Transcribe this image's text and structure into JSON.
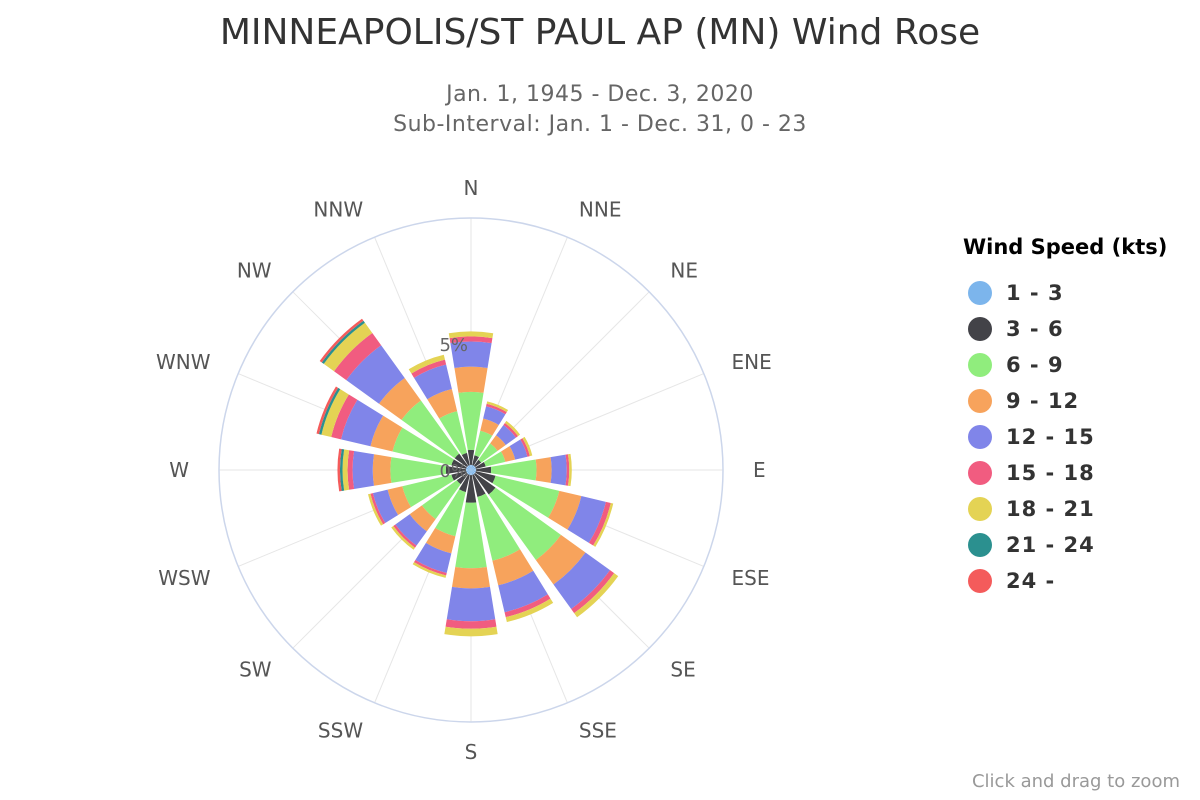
{
  "header": {
    "title": "MINNEAPOLIS/ST PAUL AP (MN) Wind Rose",
    "subtitle_line1": "Jan. 1, 1945 - Dec. 3, 2020",
    "subtitle_line2": "Sub-Interval: Jan. 1 - Dec. 31, 0 - 23"
  },
  "footer": {
    "zoom_hint": "Click and drag to zoom"
  },
  "legend": {
    "title": "Wind Speed (kts)",
    "items": [
      {
        "label": "1 - 3",
        "color": "#7cb5ec"
      },
      {
        "label": "3 - 6",
        "color": "#434348"
      },
      {
        "label": "6 - 9",
        "color": "#90ed7d"
      },
      {
        "label": "9 - 12",
        "color": "#f7a35c"
      },
      {
        "label": "12 - 15",
        "color": "#8085e9"
      },
      {
        "label": "15 - 18",
        "color": "#f15c80"
      },
      {
        "label": "18 - 21",
        "color": "#e4d354"
      },
      {
        "label": "21 - 24",
        "color": "#2b908f"
      },
      {
        "label": "24 -",
        "color": "#f45b5b"
      }
    ]
  },
  "chart_data": {
    "type": "wind-rose",
    "title": "MINNEAPOLIS/ST PAUL AP (MN) Wind Rose",
    "subtitle": [
      "Jan. 1, 1945 - Dec. 3, 2020",
      "Sub-Interval: Jan. 1 - Dec. 31, 0 - 23"
    ],
    "stacking": "stacked",
    "radial_axis": {
      "min": 0,
      "max": 10,
      "tick_labels": [
        "0%",
        "5%"
      ]
    },
    "categories": [
      "N",
      "NNE",
      "NE",
      "ENE",
      "E",
      "ESE",
      "SE",
      "SSE",
      "S",
      "SSW",
      "SW",
      "WSW",
      "W",
      "WNW",
      "NW",
      "NNW"
    ],
    "series": [
      {
        "name": "1 - 3",
        "color": "#7cb5ec",
        "values": [
          0.2,
          0.2,
          0.2,
          0.2,
          0.2,
          0.2,
          0.2,
          0.2,
          0.2,
          0.2,
          0.2,
          0.2,
          0.2,
          0.2,
          0.2,
          0.2
        ]
      },
      {
        "name": "3 - 6",
        "color": "#434348",
        "values": [
          0.6,
          0.4,
          0.3,
          0.4,
          0.6,
          0.8,
          1.0,
          0.9,
          1.1,
          0.7,
          0.5,
          0.6,
          0.8,
          0.6,
          0.6,
          0.5
        ]
      },
      {
        "name": "6 - 9",
        "color": "#90ed7d",
        "values": [
          2.3,
          1.0,
          0.8,
          0.8,
          1.8,
          2.6,
          3.2,
          2.6,
          2.6,
          1.8,
          1.7,
          2.0,
          2.2,
          2.4,
          2.6,
          1.7
        ]
      },
      {
        "name": "9 - 12",
        "color": "#f7a35c",
        "values": [
          1.0,
          0.5,
          0.4,
          0.4,
          0.6,
          0.9,
          1.2,
          1.0,
          0.8,
          0.7,
          0.6,
          0.6,
          0.7,
          0.9,
          1.1,
          0.9
        ]
      },
      {
        "name": "12 - 15",
        "color": "#8085e9",
        "values": [
          1.0,
          0.5,
          0.5,
          0.5,
          0.6,
          1.0,
          1.2,
          1.1,
          1.3,
          0.8,
          0.7,
          0.6,
          0.8,
          1.2,
          1.6,
          1.0
        ]
      },
      {
        "name": "15 - 18",
        "color": "#f15c80",
        "values": [
          0.2,
          0.1,
          0.1,
          0.1,
          0.1,
          0.2,
          0.2,
          0.2,
          0.3,
          0.1,
          0.1,
          0.1,
          0.2,
          0.4,
          0.6,
          0.2
        ]
      },
      {
        "name": "18 - 21",
        "color": "#e4d354",
        "values": [
          0.2,
          0.1,
          0.1,
          0.1,
          0.1,
          0.1,
          0.2,
          0.2,
          0.3,
          0.1,
          0.1,
          0.1,
          0.2,
          0.4,
          0.5,
          0.2
        ]
      },
      {
        "name": "21 - 24",
        "color": "#2b908f",
        "values": [
          0.0,
          0.0,
          0.0,
          0.0,
          0.0,
          0.0,
          0.0,
          0.0,
          0.0,
          0.0,
          0.0,
          0.0,
          0.1,
          0.1,
          0.1,
          0.0
        ]
      },
      {
        "name": "24 -",
        "color": "#f45b5b",
        "values": [
          0.0,
          0.0,
          0.0,
          0.0,
          0.0,
          0.0,
          0.0,
          0.0,
          0.0,
          0.0,
          0.0,
          0.0,
          0.1,
          0.1,
          0.1,
          0.0
        ]
      }
    ],
    "axis_line_color": "#ccd6eb",
    "grid_color": "#e6e6e6",
    "grid": true,
    "legend_placement": "right"
  }
}
